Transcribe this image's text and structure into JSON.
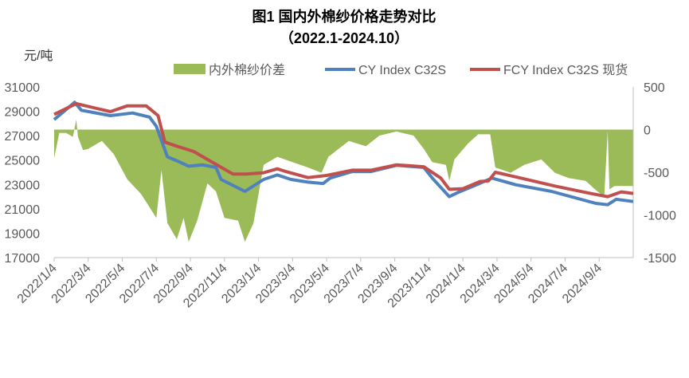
{
  "chart_data": {
    "type": "line",
    "title": "图1 国内外棉纱价格走势对比",
    "subtitle": "（2022.1-2024.10）",
    "ylabel": "元/吨",
    "x_unit": "months since 2022/1/4",
    "xlim": [
      0,
      34
    ],
    "ylim": [
      17000,
      31000
    ],
    "y2lim": [
      -1500,
      500
    ],
    "grid": false,
    "legend_position": "top",
    "left_ticks": [
      "31000",
      "29000",
      "27000",
      "25000",
      "23000",
      "21000",
      "19000",
      "17000"
    ],
    "right_ticks": [
      "500",
      "0",
      "-500",
      "-1000",
      "-1500"
    ],
    "x_tick_labels": [
      "2022/1/4",
      "2022/3/4",
      "2022/5/4",
      "2022/7/4",
      "2022/9/4",
      "2022/11/4",
      "2023/1/4",
      "2023/3/4",
      "2023/5/4",
      "2023/7/4",
      "2023/9/4",
      "2023/11/4",
      "2024/1/4",
      "2024/3/4",
      "2024/5/4",
      "2024/7/4",
      "2024/9/4"
    ],
    "series": [
      {
        "name": "内外棉纱价差",
        "axis": "right",
        "type": "area",
        "color": "#9BBB59",
        "points": [
          [
            0,
            -335
          ],
          [
            0.3,
            -39
          ],
          [
            0.7,
            -39
          ],
          [
            1.1,
            -85
          ],
          [
            1.3,
            117
          ],
          [
            1.4,
            -85
          ],
          [
            1.7,
            -241
          ],
          [
            2.0,
            -225
          ],
          [
            2.8,
            -133
          ],
          [
            3.5,
            -288
          ],
          [
            4.3,
            -584
          ],
          [
            5.1,
            -755
          ],
          [
            6.0,
            -1035
          ],
          [
            6.3,
            -475
          ],
          [
            6.65,
            -1097
          ],
          [
            7.2,
            -1285
          ],
          [
            7.6,
            -1035
          ],
          [
            7.9,
            -1316
          ],
          [
            8.4,
            -1066
          ],
          [
            9.0,
            -631
          ],
          [
            9.5,
            -724
          ],
          [
            10.0,
            -1035
          ],
          [
            10.8,
            -1066
          ],
          [
            11.2,
            -1316
          ],
          [
            11.7,
            -1097
          ],
          [
            12.3,
            -413
          ],
          [
            13.1,
            -319
          ],
          [
            14.0,
            -382
          ],
          [
            14.9,
            -444
          ],
          [
            15.7,
            -506
          ],
          [
            16.1,
            -319
          ],
          [
            17.3,
            -133
          ],
          [
            18.3,
            -195
          ],
          [
            19.1,
            -70
          ],
          [
            20.1,
            -22
          ],
          [
            21.1,
            -70
          ],
          [
            21.7,
            -225
          ],
          [
            22.2,
            -382
          ],
          [
            23.0,
            -413
          ],
          [
            23.2,
            -600
          ],
          [
            23.5,
            -350
          ],
          [
            24.3,
            -163
          ],
          [
            24.9,
            -55
          ],
          [
            25.6,
            -55
          ],
          [
            25.9,
            -444
          ],
          [
            26.8,
            -506
          ],
          [
            27.6,
            -413
          ],
          [
            28.6,
            -350
          ],
          [
            29.4,
            -506
          ],
          [
            30.2,
            -568
          ],
          [
            31.2,
            -600
          ],
          [
            31.8,
            -708
          ],
          [
            32.3,
            -786
          ],
          [
            32.5,
            -20
          ],
          [
            32.6,
            -700
          ],
          [
            32.9,
            -661
          ],
          [
            34,
            -661
          ]
        ]
      },
      {
        "name": "CY Index C32S",
        "axis": "left",
        "type": "line",
        "color": "#4F81BD",
        "points": [
          [
            0,
            28320
          ],
          [
            1.2,
            29740
          ],
          [
            1.6,
            29080
          ],
          [
            3.3,
            28645
          ],
          [
            4.6,
            28860
          ],
          [
            5.6,
            28530
          ],
          [
            6.0,
            27770
          ],
          [
            6.65,
            25260
          ],
          [
            7.2,
            24940
          ],
          [
            7.9,
            24500
          ],
          [
            8.7,
            24610
          ],
          [
            9.5,
            24400
          ],
          [
            9.8,
            23410
          ],
          [
            11.2,
            22430
          ],
          [
            12.3,
            23410
          ],
          [
            13.1,
            23780
          ],
          [
            13.9,
            23410
          ],
          [
            14.9,
            23190
          ],
          [
            15.8,
            23080
          ],
          [
            16.2,
            23520
          ],
          [
            17.5,
            24060
          ],
          [
            18.6,
            24060
          ],
          [
            20.1,
            24570
          ],
          [
            21.7,
            24400
          ],
          [
            22.2,
            23520
          ],
          [
            23.2,
            22000
          ],
          [
            23.7,
            22340
          ],
          [
            24.8,
            22970
          ],
          [
            25.7,
            23520
          ],
          [
            27.1,
            22970
          ],
          [
            29.2,
            22430
          ],
          [
            31.8,
            21450
          ],
          [
            32.5,
            21340
          ],
          [
            33.0,
            21780
          ],
          [
            34,
            21600
          ]
        ]
      },
      {
        "name": "FCY Index C32S 现货",
        "axis": "left",
        "type": "line",
        "color": "#C0504D",
        "points": [
          [
            0,
            28750
          ],
          [
            1.3,
            29630
          ],
          [
            3.3,
            28970
          ],
          [
            4.3,
            29450
          ],
          [
            5.4,
            29450
          ],
          [
            6.1,
            28650
          ],
          [
            6.5,
            26470
          ],
          [
            7.2,
            26140
          ],
          [
            8.2,
            25700
          ],
          [
            9.0,
            25050
          ],
          [
            10.5,
            23850
          ],
          [
            11.3,
            23850
          ],
          [
            12.3,
            23960
          ],
          [
            13.1,
            24280
          ],
          [
            13.6,
            24060
          ],
          [
            14.9,
            23560
          ],
          [
            16.0,
            23740
          ],
          [
            17.5,
            24170
          ],
          [
            18.6,
            24170
          ],
          [
            20.1,
            24610
          ],
          [
            21.7,
            24450
          ],
          [
            22.7,
            23520
          ],
          [
            23.2,
            22600
          ],
          [
            24.0,
            22650
          ],
          [
            25.0,
            23240
          ],
          [
            25.5,
            23300
          ],
          [
            25.9,
            24000
          ],
          [
            27.4,
            23520
          ],
          [
            29.4,
            22870
          ],
          [
            31.5,
            22260
          ],
          [
            32.5,
            22000
          ],
          [
            33.3,
            22390
          ],
          [
            34,
            22260
          ]
        ]
      }
    ]
  }
}
